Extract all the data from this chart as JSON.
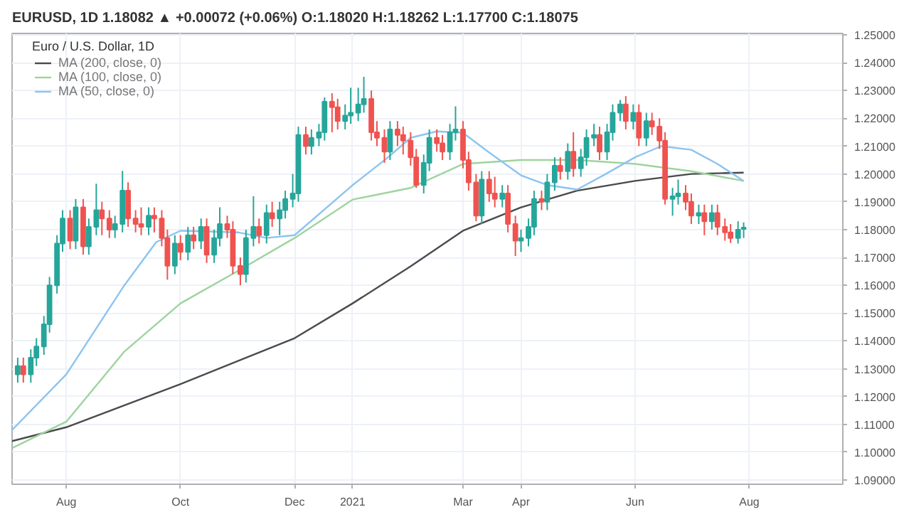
{
  "chart_data": {
    "type": "candlestick",
    "title": "EURUSD, 1D 1.18082 ▲ +0.00072 (+0.06%) O:1.18020 H:1.18262 L:1.17700 C:1.18075",
    "subtitle": "Euro / U.S. Dollar, 1D",
    "x": [
      "2020-07-06",
      "2020-07-09",
      "2020-07-13",
      "2020-07-16",
      "2020-07-20",
      "2020-07-23",
      "2020-07-27",
      "2020-07-30",
      "2020-08-03",
      "2020-08-06",
      "2020-08-10",
      "2020-08-13",
      "2020-08-17",
      "2020-08-20",
      "2020-08-24",
      "2020-08-27",
      "2020-08-31",
      "2020-09-03",
      "2020-09-07",
      "2020-09-10",
      "2020-09-14",
      "2020-09-17",
      "2020-09-21",
      "2020-09-24",
      "2020-09-28",
      "2020-10-01",
      "2020-10-05",
      "2020-10-08",
      "2020-10-12",
      "2020-10-15",
      "2020-10-19",
      "2020-10-22",
      "2020-10-26",
      "2020-10-29",
      "2020-11-02",
      "2020-11-05",
      "2020-11-09",
      "2020-11-12",
      "2020-11-16",
      "2020-11-19",
      "2020-11-23",
      "2020-11-26",
      "2020-11-30",
      "2020-12-03",
      "2020-12-07",
      "2020-12-10",
      "2020-12-14",
      "2020-12-17",
      "2020-12-21",
      "2020-12-24",
      "2020-12-28",
      "2020-12-31",
      "2021-01-04",
      "2021-01-07",
      "2021-01-11",
      "2021-01-14",
      "2021-01-18",
      "2021-01-21",
      "2021-01-25",
      "2021-01-28",
      "2021-02-01",
      "2021-02-04",
      "2021-02-08",
      "2021-02-11",
      "2021-02-15",
      "2021-02-18",
      "2021-02-22",
      "2021-02-25",
      "2021-03-01",
      "2021-03-04",
      "2021-03-08",
      "2021-03-11",
      "2021-03-15",
      "2021-03-18",
      "2021-03-22",
      "2021-03-25",
      "2021-03-29",
      "2021-04-01",
      "2021-04-05",
      "2021-04-08",
      "2021-04-12",
      "2021-04-15",
      "2021-04-19",
      "2021-04-22",
      "2021-04-26",
      "2021-04-29",
      "2021-05-03",
      "2021-05-06",
      "2021-05-10",
      "2021-05-13",
      "2021-05-17",
      "2021-05-20",
      "2021-05-24",
      "2021-05-27",
      "2021-05-31",
      "2021-06-03",
      "2021-06-07",
      "2021-06-10",
      "2021-06-14",
      "2021-06-17",
      "2021-06-21",
      "2021-06-24",
      "2021-06-28",
      "2021-07-01",
      "2021-07-05",
      "2021-07-08",
      "2021-07-12",
      "2021-07-15",
      "2021-07-19",
      "2021-07-22",
      "2021-07-26",
      "2021-07-29"
    ],
    "ohlc": [
      [
        1.128,
        1.134,
        1.125,
        1.131
      ],
      [
        1.131,
        1.134,
        1.125,
        1.128
      ],
      [
        1.128,
        1.137,
        1.125,
        1.134
      ],
      [
        1.134,
        1.141,
        1.131,
        1.138
      ],
      [
        1.138,
        1.149,
        1.135,
        1.146
      ],
      [
        1.146,
        1.163,
        1.143,
        1.16
      ],
      [
        1.16,
        1.178,
        1.157,
        1.175
      ],
      [
        1.175,
        1.187,
        1.172,
        1.184
      ],
      [
        1.184,
        1.187,
        1.173,
        1.176
      ],
      [
        1.176,
        1.191,
        1.173,
        1.188
      ],
      [
        1.188,
        1.191,
        1.171,
        1.174
      ],
      [
        1.174,
        1.184,
        1.171,
        1.181
      ],
      [
        1.181,
        1.1965,
        1.178,
        1.187
      ],
      [
        1.187,
        1.19,
        1.178,
        1.184
      ],
      [
        1.184,
        1.187,
        1.177,
        1.18
      ],
      [
        1.18,
        1.185,
        1.177,
        1.182
      ],
      [
        1.182,
        1.2011,
        1.179,
        1.194
      ],
      [
        1.194,
        1.197,
        1.181,
        1.184
      ],
      [
        1.184,
        1.187,
        1.179,
        1.182
      ],
      [
        1.182,
        1.188,
        1.178,
        1.181
      ],
      [
        1.181,
        1.188,
        1.178,
        1.185
      ],
      [
        1.185,
        1.188,
        1.179,
        1.184
      ],
      [
        1.184,
        1.187,
        1.174,
        1.177
      ],
      [
        1.177,
        1.18,
        1.162,
        1.167
      ],
      [
        1.167,
        1.178,
        1.164,
        1.175
      ],
      [
        1.175,
        1.178,
        1.169,
        1.172
      ],
      [
        1.172,
        1.181,
        1.169,
        1.178
      ],
      [
        1.178,
        1.181,
        1.173,
        1.176
      ],
      [
        1.176,
        1.184,
        1.173,
        1.181
      ],
      [
        1.181,
        1.184,
        1.168,
        1.171
      ],
      [
        1.171,
        1.18,
        1.168,
        1.177
      ],
      [
        1.177,
        1.188,
        1.174,
        1.182
      ],
      [
        1.182,
        1.185,
        1.177,
        1.18
      ],
      [
        1.18,
        1.183,
        1.164,
        1.167
      ],
      [
        1.167,
        1.17,
        1.16,
        1.164
      ],
      [
        1.164,
        1.18,
        1.161,
        1.177
      ],
      [
        1.177,
        1.192,
        1.174,
        1.181
      ],
      [
        1.181,
        1.184,
        1.175,
        1.178
      ],
      [
        1.178,
        1.189,
        1.175,
        1.186
      ],
      [
        1.186,
        1.19,
        1.181,
        1.184
      ],
      [
        1.184,
        1.19,
        1.178,
        1.187
      ],
      [
        1.187,
        1.194,
        1.184,
        1.191
      ],
      [
        1.191,
        1.2,
        1.188,
        1.193
      ],
      [
        1.193,
        1.217,
        1.19,
        1.214
      ],
      [
        1.214,
        1.217,
        1.207,
        1.21
      ],
      [
        1.21,
        1.216,
        1.207,
        1.213
      ],
      [
        1.213,
        1.218,
        1.21,
        1.215
      ],
      [
        1.215,
        1.2275,
        1.212,
        1.226
      ],
      [
        1.226,
        1.229,
        1.215,
        1.224
      ],
      [
        1.224,
        1.227,
        1.216,
        1.219
      ],
      [
        1.219,
        1.225,
        1.216,
        1.221
      ],
      [
        1.221,
        1.231,
        1.218,
        1.222
      ],
      [
        1.222,
        1.231,
        1.219,
        1.225
      ],
      [
        1.225,
        1.2349,
        1.222,
        1.227
      ],
      [
        1.227,
        1.23,
        1.212,
        1.215
      ],
      [
        1.215,
        1.219,
        1.21,
        1.213
      ],
      [
        1.213,
        1.216,
        1.204,
        1.208
      ],
      [
        1.208,
        1.219,
        1.205,
        1.216
      ],
      [
        1.216,
        1.219,
        1.21,
        1.214
      ],
      [
        1.214,
        1.217,
        1.207,
        1.212
      ],
      [
        1.212,
        1.215,
        1.203,
        1.206
      ],
      [
        1.206,
        1.209,
        1.195,
        1.196
      ],
      [
        1.196,
        1.207,
        1.193,
        1.204
      ],
      [
        1.204,
        1.216,
        1.201,
        1.213
      ],
      [
        1.213,
        1.216,
        1.208,
        1.211
      ],
      [
        1.211,
        1.214,
        1.205,
        1.208
      ],
      [
        1.208,
        1.218,
        1.205,
        1.215
      ],
      [
        1.215,
        1.2243,
        1.212,
        1.216
      ],
      [
        1.216,
        1.219,
        1.202,
        1.205
      ],
      [
        1.205,
        1.208,
        1.194,
        1.197
      ],
      [
        1.197,
        1.2,
        1.183,
        1.185
      ],
      [
        1.185,
        1.201,
        1.182,
        1.198
      ],
      [
        1.198,
        1.201,
        1.19,
        1.193
      ],
      [
        1.193,
        1.199,
        1.188,
        1.191
      ],
      [
        1.191,
        1.196,
        1.188,
        1.193
      ],
      [
        1.193,
        1.196,
        1.179,
        1.182
      ],
      [
        1.182,
        1.185,
        1.1705,
        1.176
      ],
      [
        1.176,
        1.18,
        1.172,
        1.177
      ],
      [
        1.177,
        1.184,
        1.174,
        1.181
      ],
      [
        1.181,
        1.194,
        1.178,
        1.191
      ],
      [
        1.191,
        1.194,
        1.187,
        1.19
      ],
      [
        1.19,
        1.2,
        1.187,
        1.197
      ],
      [
        1.197,
        1.206,
        1.194,
        1.203
      ],
      [
        1.203,
        1.206,
        1.198,
        1.201
      ],
      [
        1.201,
        1.211,
        1.198,
        1.208
      ],
      [
        1.208,
        1.215,
        1.199,
        1.202
      ],
      [
        1.202,
        1.209,
        1.199,
        1.206
      ],
      [
        1.206,
        1.216,
        1.203,
        1.213
      ],
      [
        1.213,
        1.218,
        1.21,
        1.214
      ],
      [
        1.214,
        1.217,
        1.205,
        1.208
      ],
      [
        1.208,
        1.218,
        1.205,
        1.215
      ],
      [
        1.215,
        1.225,
        1.212,
        1.222
      ],
      [
        1.222,
        1.2266,
        1.219,
        1.225
      ],
      [
        1.225,
        1.228,
        1.216,
        1.219
      ],
      [
        1.219,
        1.225,
        1.216,
        1.222
      ],
      [
        1.222,
        1.225,
        1.21,
        1.213
      ],
      [
        1.213,
        1.222,
        1.21,
        1.219
      ],
      [
        1.219,
        1.222,
        1.214,
        1.217
      ],
      [
        1.217,
        1.22,
        1.209,
        1.212
      ],
      [
        1.212,
        1.215,
        1.189,
        1.191
      ],
      [
        1.191,
        1.195,
        1.185,
        1.192
      ],
      [
        1.192,
        1.198,
        1.189,
        1.193
      ],
      [
        1.193,
        1.196,
        1.187,
        1.19
      ],
      [
        1.19,
        1.193,
        1.182,
        1.185
      ],
      [
        1.185,
        1.189,
        1.182,
        1.186
      ],
      [
        1.186,
        1.189,
        1.178,
        1.183
      ],
      [
        1.183,
        1.189,
        1.18,
        1.186
      ],
      [
        1.186,
        1.189,
        1.178,
        1.181
      ],
      [
        1.181,
        1.184,
        1.176,
        1.179
      ],
      [
        1.179,
        1.182,
        1.1752,
        1.177
      ],
      [
        1.177,
        1.183,
        1.175,
        1.18
      ],
      [
        1.1802,
        1.18262,
        1.177,
        1.18075
      ]
    ],
    "series": [
      {
        "name": "MA (200, close, 0)",
        "type": "line",
        "color": "#4a4a4a",
        "x": [
          "2020-07-03",
          "2020-08-01",
          "2020-10-01",
          "2020-12-01",
          "2021-01-01",
          "2021-02-01",
          "2021-03-01",
          "2021-04-01",
          "2021-05-01",
          "2021-06-01",
          "2021-07-01",
          "2021-07-29"
        ],
        "values": [
          1.104,
          1.109,
          1.1245,
          1.141,
          1.1535,
          1.1668,
          1.1796,
          1.188,
          1.194,
          1.1975,
          1.2,
          1.2005
        ]
      },
      {
        "name": "MA (100, close, 0)",
        "type": "line",
        "color": "#9fd39f",
        "x": [
          "2020-07-03",
          "2020-08-01",
          "2020-09-01",
          "2020-10-01",
          "2020-11-01",
          "2020-12-01",
          "2021-01-01",
          "2021-02-01",
          "2021-03-01",
          "2021-04-01",
          "2021-05-01",
          "2021-06-01",
          "2021-07-01",
          "2021-07-29"
        ],
        "values": [
          1.1015,
          1.111,
          1.1362,
          1.1535,
          1.1653,
          1.177,
          1.1908,
          1.195,
          1.2036,
          1.205,
          1.205,
          1.2036,
          1.201,
          1.1975
        ]
      },
      {
        "name": "MA (50, close, 0)",
        "type": "line",
        "color": "#8cc4f0",
        "x": [
          "2020-07-03",
          "2020-08-01",
          "2020-09-01",
          "2020-09-18",
          "2020-10-01",
          "2020-11-01",
          "2020-11-16",
          "2020-12-01",
          "2021-01-01",
          "2021-01-20",
          "2021-02-01",
          "2021-02-15",
          "2021-03-01",
          "2021-03-15",
          "2021-04-01",
          "2021-04-15",
          "2021-05-01",
          "2021-05-15",
          "2021-06-01",
          "2021-06-15",
          "2021-07-01",
          "2021-07-15",
          "2021-07-29"
        ],
        "values": [
          1.108,
          1.128,
          1.16,
          1.1755,
          1.1796,
          1.179,
          1.177,
          1.178,
          1.196,
          1.206,
          1.213,
          1.2153,
          1.2148,
          1.2077,
          1.1995,
          1.196,
          1.1944,
          1.1995,
          1.206,
          1.21,
          1.2087,
          1.2036,
          1.1975
        ]
      }
    ],
    "xlim": [
      "2020-07-03",
      "2021-09-20"
    ],
    "xticks": [
      {
        "value": "2020-08-01",
        "label": "Aug"
      },
      {
        "value": "2020-10-01",
        "label": "Oct"
      },
      {
        "value": "2020-12-01",
        "label": "Dec"
      },
      {
        "value": "2021-01-01",
        "label": "2021"
      },
      {
        "value": "2021-03-01",
        "label": "Mar"
      },
      {
        "value": "2021-04-01",
        "label": "Apr"
      },
      {
        "value": "2021-06-01",
        "label": "Jun"
      },
      {
        "value": "2021-08-01",
        "label": "Aug"
      }
    ],
    "ylim": [
      1.0885,
      1.2505
    ],
    "yticks": [
      {
        "value": 1.09,
        "label": "1.09000"
      },
      {
        "value": 1.1,
        "label": "1.10000"
      },
      {
        "value": 1.11,
        "label": "1.11000"
      },
      {
        "value": 1.12,
        "label": "1.12000"
      },
      {
        "value": 1.13,
        "label": "1.13000"
      },
      {
        "value": 1.14,
        "label": "1.14000"
      },
      {
        "value": 1.15,
        "label": "1.15000"
      },
      {
        "value": 1.16,
        "label": "1.16000"
      },
      {
        "value": 1.17,
        "label": "1.17000"
      },
      {
        "value": 1.18,
        "label": "1.18000"
      },
      {
        "value": 1.19,
        "label": "1.19000"
      },
      {
        "value": 1.2,
        "label": "1.20000"
      },
      {
        "value": 1.21,
        "label": "1.21000"
      },
      {
        "value": 1.22,
        "label": "1.22000"
      },
      {
        "value": 1.23,
        "label": "1.23000"
      },
      {
        "value": 1.24,
        "label": "1.24000"
      },
      {
        "value": 1.25,
        "label": "1.25000"
      }
    ],
    "grid": true,
    "legend": "top left"
  }
}
